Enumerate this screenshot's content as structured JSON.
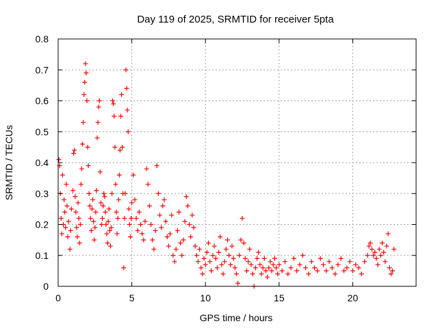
{
  "chart_data": {
    "type": "scatter",
    "title": "Day 119 of 2025, SRMTID for receiver 5pta",
    "xlabel": "GPS time / hours",
    "ylabel": "SRMTID / TECUs",
    "xlim": [
      0,
      24.3
    ],
    "ylim": [
      0,
      0.8
    ],
    "xticks": [
      0,
      5,
      10,
      15,
      20
    ],
    "xtick_labels": [
      "0",
      "5",
      "10",
      "15",
      "20"
    ],
    "yticks": [
      0,
      0.1,
      0.2,
      0.3,
      0.4,
      0.5,
      0.6,
      0.7,
      0.8
    ],
    "ytick_labels": [
      "0",
      "0.1",
      "0.2",
      "0.3",
      "0.4",
      "0.5",
      "0.6",
      "0.7",
      "0.8"
    ],
    "grid": true,
    "marker": "+",
    "color": "#ff0000",
    "series": [
      {
        "name": "SRMTID",
        "points": [
          [
            0.05,
            0.41
          ],
          [
            0.1,
            0.39
          ],
          [
            0.15,
            0.3
          ],
          [
            0.2,
            0.22
          ],
          [
            0.25,
            0.17
          ],
          [
            0.3,
            0.36
          ],
          [
            0.35,
            0.2
          ],
          [
            0.4,
            0.28
          ],
          [
            0.45,
            0.24
          ],
          [
            0.5,
            0.19
          ],
          [
            0.55,
            0.33
          ],
          [
            0.6,
            0.26
          ],
          [
            0.65,
            0.16
          ],
          [
            0.7,
            0.21
          ],
          [
            0.8,
            0.12
          ],
          [
            0.85,
            0.18
          ],
          [
            0.9,
            0.25
          ],
          [
            1.0,
            0.31
          ],
          [
            1.05,
            0.43
          ],
          [
            1.1,
            0.44
          ],
          [
            1.15,
            0.29
          ],
          [
            1.2,
            0.24
          ],
          [
            1.25,
            0.19
          ],
          [
            1.3,
            0.16
          ],
          [
            1.35,
            0.27
          ],
          [
            1.4,
            0.22
          ],
          [
            1.45,
            0.14
          ],
          [
            1.5,
            0.2
          ],
          [
            1.55,
            0.33
          ],
          [
            1.6,
            0.38
          ],
          [
            1.65,
            0.46
          ],
          [
            1.7,
            0.53
          ],
          [
            1.75,
            0.62
          ],
          [
            1.8,
            0.66
          ],
          [
            1.85,
            0.72
          ],
          [
            1.9,
            0.69
          ],
          [
            1.95,
            0.6
          ],
          [
            2.0,
            0.45
          ],
          [
            2.05,
            0.39
          ],
          [
            2.1,
            0.3
          ],
          [
            2.15,
            0.26
          ],
          [
            2.2,
            0.22
          ],
          [
            2.25,
            0.18
          ],
          [
            2.3,
            0.25
          ],
          [
            2.35,
            0.28
          ],
          [
            2.4,
            0.21
          ],
          [
            2.45,
            0.15
          ],
          [
            2.5,
            0.19
          ],
          [
            2.55,
            0.24
          ],
          [
            2.6,
            0.31
          ],
          [
            2.65,
            0.48
          ],
          [
            2.7,
            0.53
          ],
          [
            2.75,
            0.58
          ],
          [
            2.8,
            0.6
          ],
          [
            2.85,
            0.37
          ],
          [
            2.9,
            0.27
          ],
          [
            2.95,
            0.2
          ],
          [
            3.0,
            0.22
          ],
          [
            3.05,
            0.26
          ],
          [
            3.1,
            0.3
          ],
          [
            3.15,
            0.29
          ],
          [
            3.2,
            0.24
          ],
          [
            3.25,
            0.2
          ],
          [
            3.3,
            0.17
          ],
          [
            3.35,
            0.14
          ],
          [
            3.4,
            0.21
          ],
          [
            3.45,
            0.25
          ],
          [
            3.5,
            0.18
          ],
          [
            3.55,
            0.13
          ],
          [
            3.6,
            0.19
          ],
          [
            3.65,
            0.3
          ],
          [
            3.7,
            0.6
          ],
          [
            3.75,
            0.59
          ],
          [
            3.8,
            0.55
          ],
          [
            3.85,
            0.45
          ],
          [
            3.9,
            0.33
          ],
          [
            3.95,
            0.24
          ],
          [
            4.0,
            0.17
          ],
          [
            4.05,
            0.22
          ],
          [
            4.1,
            0.28
          ],
          [
            4.15,
            0.36
          ],
          [
            4.2,
            0.44
          ],
          [
            4.25,
            0.55
          ],
          [
            4.3,
            0.62
          ],
          [
            4.35,
            0.45
          ],
          [
            4.4,
            0.3
          ],
          [
            4.45,
            0.06
          ],
          [
            4.5,
            0.22
          ],
          [
            4.55,
            0.3
          ],
          [
            4.6,
            0.7
          ],
          [
            4.65,
            0.64
          ],
          [
            4.7,
            0.57
          ],
          [
            4.75,
            0.5
          ],
          [
            4.8,
            0.25
          ],
          [
            4.85,
            0.2
          ],
          [
            4.9,
            0.16
          ],
          [
            4.95,
            0.22
          ],
          [
            5.0,
            0.27
          ],
          [
            5.1,
            0.36
          ],
          [
            5.2,
            0.28
          ],
          [
            5.3,
            0.22
          ],
          [
            5.4,
            0.18
          ],
          [
            5.5,
            0.24
          ],
          [
            5.6,
            0.2
          ],
          [
            5.7,
            0.17
          ],
          [
            5.8,
            0.15
          ],
          [
            5.9,
            0.21
          ],
          [
            6.0,
            0.38
          ],
          [
            6.1,
            0.33
          ],
          [
            6.2,
            0.26
          ],
          [
            6.3,
            0.2
          ],
          [
            6.4,
            0.15
          ],
          [
            6.5,
            0.12
          ],
          [
            6.6,
            0.18
          ],
          [
            6.7,
            0.39
          ],
          [
            6.8,
            0.3
          ],
          [
            6.9,
            0.23
          ],
          [
            7.0,
            0.19
          ],
          [
            7.1,
            0.26
          ],
          [
            7.2,
            0.28
          ],
          [
            7.3,
            0.21
          ],
          [
            7.4,
            0.16
          ],
          [
            7.5,
            0.13
          ],
          [
            7.6,
            0.17
          ],
          [
            7.7,
            0.23
          ],
          [
            7.8,
            0.1
          ],
          [
            7.9,
            0.08
          ],
          [
            8.0,
            0.12
          ],
          [
            8.1,
            0.18
          ],
          [
            8.2,
            0.24
          ],
          [
            8.3,
            0.14
          ],
          [
            8.4,
            0.1
          ],
          [
            8.5,
            0.15
          ],
          [
            8.6,
            0.21
          ],
          [
            8.7,
            0.29
          ],
          [
            8.8,
            0.26
          ],
          [
            8.9,
            0.2
          ],
          [
            9.0,
            0.16
          ],
          [
            9.1,
            0.23
          ],
          [
            9.2,
            0.19
          ],
          [
            9.3,
            0.13
          ],
          [
            9.4,
            0.1
          ],
          [
            9.5,
            0.08
          ],
          [
            9.6,
            0.12
          ],
          [
            9.7,
            0.06
          ],
          [
            9.8,
            0.04
          ],
          [
            9.9,
            0.09
          ],
          [
            10.0,
            0.07
          ],
          [
            10.1,
            0.11
          ],
          [
            10.2,
            0.14
          ],
          [
            10.3,
            0.08
          ],
          [
            10.4,
            0.05
          ],
          [
            10.5,
            0.1
          ],
          [
            10.6,
            0.13
          ],
          [
            10.7,
            0.09
          ],
          [
            10.8,
            0.06
          ],
          [
            10.9,
            0.11
          ],
          [
            11.0,
            0.16
          ],
          [
            11.1,
            0.07
          ],
          [
            11.2,
            0.04
          ],
          [
            11.3,
            0.08
          ],
          [
            11.4,
            0.12
          ],
          [
            11.5,
            0.15
          ],
          [
            11.6,
            0.1
          ],
          [
            11.7,
            0.07
          ],
          [
            11.8,
            0.13
          ],
          [
            11.9,
            0.09
          ],
          [
            12.0,
            0.06
          ],
          [
            12.1,
            0.04
          ],
          [
            12.2,
            0.01
          ],
          [
            12.3,
            0.1
          ],
          [
            12.4,
            0.15
          ],
          [
            12.5,
            0.22
          ],
          [
            12.6,
            0.14
          ],
          [
            12.7,
            0.09
          ],
          [
            12.8,
            0.05
          ],
          [
            12.9,
            0.08
          ],
          [
            13.0,
            0.12
          ],
          [
            13.1,
            0.07
          ],
          [
            13.2,
            0.04
          ],
          [
            13.3,
            0.0
          ],
          [
            13.4,
            0.06
          ],
          [
            13.5,
            0.09
          ],
          [
            13.6,
            0.11
          ],
          [
            13.7,
            0.07
          ],
          [
            13.8,
            0.04
          ],
          [
            13.9,
            0.06
          ],
          [
            14.0,
            0.09
          ],
          [
            14.1,
            0.05
          ],
          [
            14.2,
            0.03
          ],
          [
            14.3,
            0.06
          ],
          [
            14.4,
            0.08
          ],
          [
            14.5,
            0.05
          ],
          [
            14.6,
            0.07
          ],
          [
            14.7,
            0.09
          ],
          [
            14.8,
            0.06
          ],
          [
            14.9,
            0.04
          ],
          [
            15.0,
            0.07
          ],
          [
            15.2,
            0.05
          ],
          [
            15.4,
            0.08
          ],
          [
            15.6,
            0.04
          ],
          [
            15.8,
            0.06
          ],
          [
            16.0,
            0.09
          ],
          [
            16.2,
            0.05
          ],
          [
            16.4,
            0.07
          ],
          [
            16.6,
            0.1
          ],
          [
            16.8,
            0.06
          ],
          [
            17.0,
            0.04
          ],
          [
            17.2,
            0.08
          ],
          [
            17.4,
            0.06
          ],
          [
            17.6,
            0.05
          ],
          [
            17.8,
            0.09
          ],
          [
            18.0,
            0.07
          ],
          [
            18.2,
            0.05
          ],
          [
            18.4,
            0.08
          ],
          [
            18.6,
            0.06
          ],
          [
            18.8,
            0.04
          ],
          [
            19.0,
            0.07
          ],
          [
            19.2,
            0.09
          ],
          [
            19.4,
            0.05
          ],
          [
            19.6,
            0.06
          ],
          [
            19.8,
            0.08
          ],
          [
            20.0,
            0.05
          ],
          [
            20.2,
            0.07
          ],
          [
            20.4,
            0.06
          ],
          [
            20.6,
            0.04
          ],
          [
            20.8,
            0.08
          ],
          [
            21.0,
            0.1
          ],
          [
            21.1,
            0.13
          ],
          [
            21.2,
            0.14
          ],
          [
            21.3,
            0.12
          ],
          [
            21.4,
            0.1
          ],
          [
            21.5,
            0.11
          ],
          [
            21.6,
            0.09
          ],
          [
            21.7,
            0.07
          ],
          [
            21.8,
            0.12
          ],
          [
            21.9,
            0.1
          ],
          [
            22.0,
            0.14
          ],
          [
            22.1,
            0.11
          ],
          [
            22.2,
            0.08
          ],
          [
            22.3,
            0.13
          ],
          [
            22.4,
            0.17
          ],
          [
            22.5,
            0.06
          ],
          [
            22.6,
            0.04
          ],
          [
            22.7,
            0.05
          ],
          [
            22.8,
            0.12
          ]
        ]
      }
    ]
  }
}
